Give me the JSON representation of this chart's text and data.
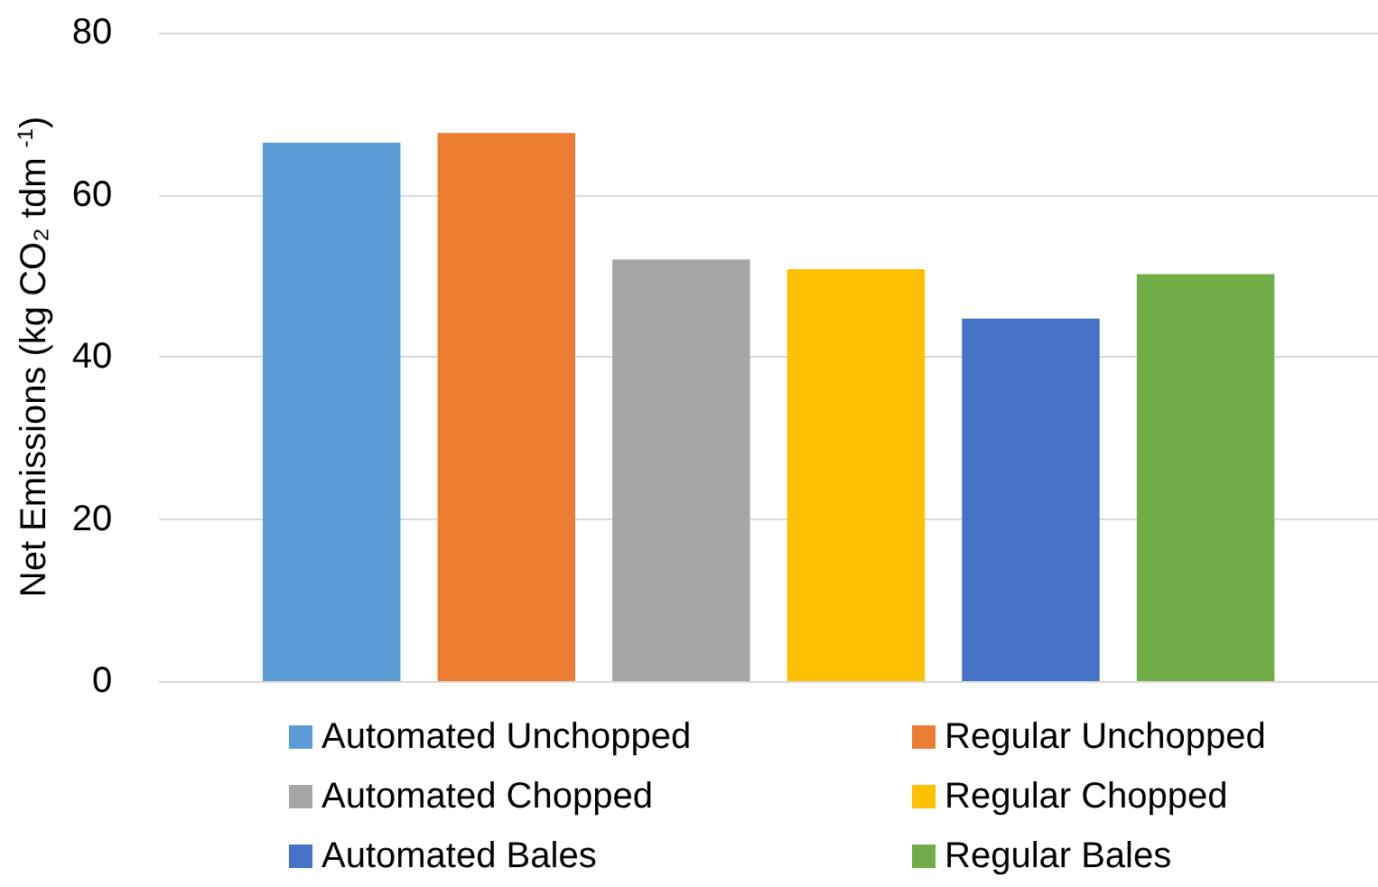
{
  "chart_data": {
    "type": "bar",
    "ylabel": "Net Emissions (kg CO₂ tdm $^{-1}$)",
    "categories": [
      null
    ],
    "series": [
      {
        "name": "Automated Unchopped",
        "color": "#5b9bd5",
        "values": [
          66.4
        ]
      },
      {
        "name": "Regular Unchopped",
        "color": "#ed7d31",
        "values": [
          67.6
        ]
      },
      {
        "name": "Automated Chopped",
        "color": "#a5a5a5",
        "values": [
          52.0
        ]
      },
      {
        "name": "Regular Chopped",
        "color": "#ffc000",
        "values": [
          50.8
        ]
      },
      {
        "name": "Automated Bales",
        "color": "#4472c4",
        "values": [
          44.7
        ]
      },
      {
        "name": "Regular Bales",
        "color": "#70ad47",
        "values": [
          50.2
        ]
      }
    ],
    "ylim": [
      0,
      80
    ],
    "yticks": [
      0,
      20,
      40,
      60,
      80
    ],
    "grid": "y",
    "legend": "bottom"
  }
}
